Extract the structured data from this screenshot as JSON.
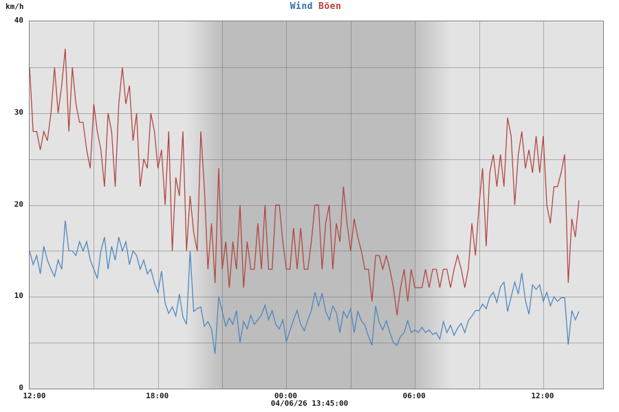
{
  "header": {
    "unit_label": "km/h",
    "legend": [
      {
        "label": "Wind",
        "color": "#2e6cb5"
      },
      {
        "label": "Böen",
        "color": "#bf3a36"
      }
    ]
  },
  "footer": {
    "timestamp": "04/06/26 13:45:00"
  },
  "chart_data": {
    "type": "line",
    "title": "Wind Böen",
    "ylabel": "km/h",
    "ylim": [
      0,
      40
    ],
    "y_gridline_step": 5,
    "y_ticks": [
      {
        "v": 0,
        "label": "0"
      },
      {
        "v": 10,
        "label": "10"
      },
      {
        "v": 20,
        "label": "20"
      },
      {
        "v": 30,
        "label": "30"
      },
      {
        "v": 40,
        "label": "40"
      }
    ],
    "x_span_hours": 26.8,
    "x_gridline_step_hours": 3,
    "x_ticks": [
      {
        "h": 0,
        "label": "12:00"
      },
      {
        "h": 6,
        "label": "18:00"
      },
      {
        "h": 12,
        "label": "00:00"
      },
      {
        "h": 18,
        "label": "06:00"
      },
      {
        "h": 24,
        "label": "12:00"
      }
    ],
    "grid_color": "rgba(110,110,110,0.5)",
    "night_shading": {
      "light": "#e3e3e3",
      "dark": "#bdbdbd",
      "stops_pct": [
        27.3,
        33.7,
        66.7,
        73.5
      ]
    },
    "sample_interval_min": 10,
    "start_time_label": "12:00",
    "series": [
      {
        "name": "Böen",
        "color": "#b2453f",
        "values": [
          35,
          28,
          28,
          26,
          28,
          27,
          30,
          35,
          30,
          33,
          37,
          28,
          35,
          31,
          29,
          29,
          26,
          24,
          31,
          28,
          26,
          22,
          30,
          28,
          22,
          31,
          35,
          31,
          33,
          27,
          30,
          22,
          25,
          24,
          30,
          28,
          24,
          26,
          20,
          28,
          15,
          23,
          21,
          28,
          15,
          21,
          17,
          15,
          28,
          22,
          13,
          18,
          11.5,
          24,
          13,
          16,
          11,
          16,
          13,
          20,
          11,
          16,
          13,
          13,
          18,
          13,
          20,
          13,
          13,
          20,
          20,
          16,
          13,
          13,
          17.5,
          13,
          17.5,
          13,
          13,
          16,
          20,
          20,
          13,
          18,
          20,
          13,
          18,
          16,
          22,
          18,
          15,
          18.5,
          16.5,
          15,
          13,
          13,
          9.5,
          14.5,
          14.5,
          13,
          14.5,
          13,
          11,
          8,
          11,
          13,
          9.5,
          13,
          11,
          11,
          11,
          13,
          11,
          13,
          13,
          11,
          13,
          13,
          11,
          13,
          14.5,
          13,
          11,
          13,
          18,
          14.5,
          20,
          24,
          15.5,
          23.5,
          25.5,
          22,
          25.5,
          22,
          29.5,
          27.5,
          20,
          25.5,
          28,
          24,
          26,
          23.5,
          27.5,
          23.5,
          27.5,
          20,
          18,
          22,
          22,
          23.5,
          25.5,
          11.5,
          18.5,
          16.5,
          20.5
        ]
      },
      {
        "name": "Wind",
        "color": "#4d86c0",
        "values": [
          15,
          13.5,
          14.5,
          12.5,
          15.5,
          14,
          13,
          12.2,
          14,
          13,
          18.3,
          15,
          15,
          14.5,
          16,
          15,
          16,
          14,
          13,
          12,
          15,
          16.5,
          13,
          15.5,
          14,
          16.5,
          15,
          16,
          13.5,
          15,
          14.5,
          13,
          14,
          12.5,
          13,
          11.5,
          10.5,
          12.8,
          9.3,
          8.2,
          8.9,
          7.9,
          10.3,
          7.8,
          7,
          15,
          8.4,
          8.7,
          8.9,
          6.8,
          7.3,
          6.5,
          3.8,
          10,
          8.4,
          6.8,
          7.7,
          7,
          8.5,
          5,
          7.3,
          6.5,
          8,
          7,
          7.5,
          8,
          9.1,
          7.5,
          8.5,
          7,
          6.5,
          7.5,
          5.1,
          6.3,
          7.5,
          8.5,
          7,
          6.3,
          7.5,
          8.5,
          10.5,
          9,
          10.4,
          8.4,
          7.5,
          9,
          8.3,
          6.1,
          8.4,
          7.7,
          8.7,
          6.1,
          8.4,
          7.4,
          6.9,
          5.7,
          4.7,
          9,
          7.2,
          6.4,
          7.4,
          6.1,
          5,
          4.7,
          5.7,
          6.1,
          7.4,
          6.1,
          6.4,
          6.1,
          6.7,
          6.1,
          6.4,
          5.9,
          6.1,
          5.4,
          7.3,
          6.1,
          6.9,
          5.8,
          6.6,
          7.1,
          6.1,
          7.4,
          7.9,
          8.5,
          8.5,
          9.2,
          8.7,
          10,
          10.5,
          9.4,
          11.1,
          11.6,
          8.4,
          10,
          11.6,
          10.3,
          12.6,
          9.6,
          8.1,
          11.3,
          10.8,
          11.3,
          9.5,
          10.5,
          9,
          10,
          9.5,
          9.9,
          9.9,
          4.8,
          8.5,
          7.5,
          8.4
        ]
      }
    ]
  }
}
